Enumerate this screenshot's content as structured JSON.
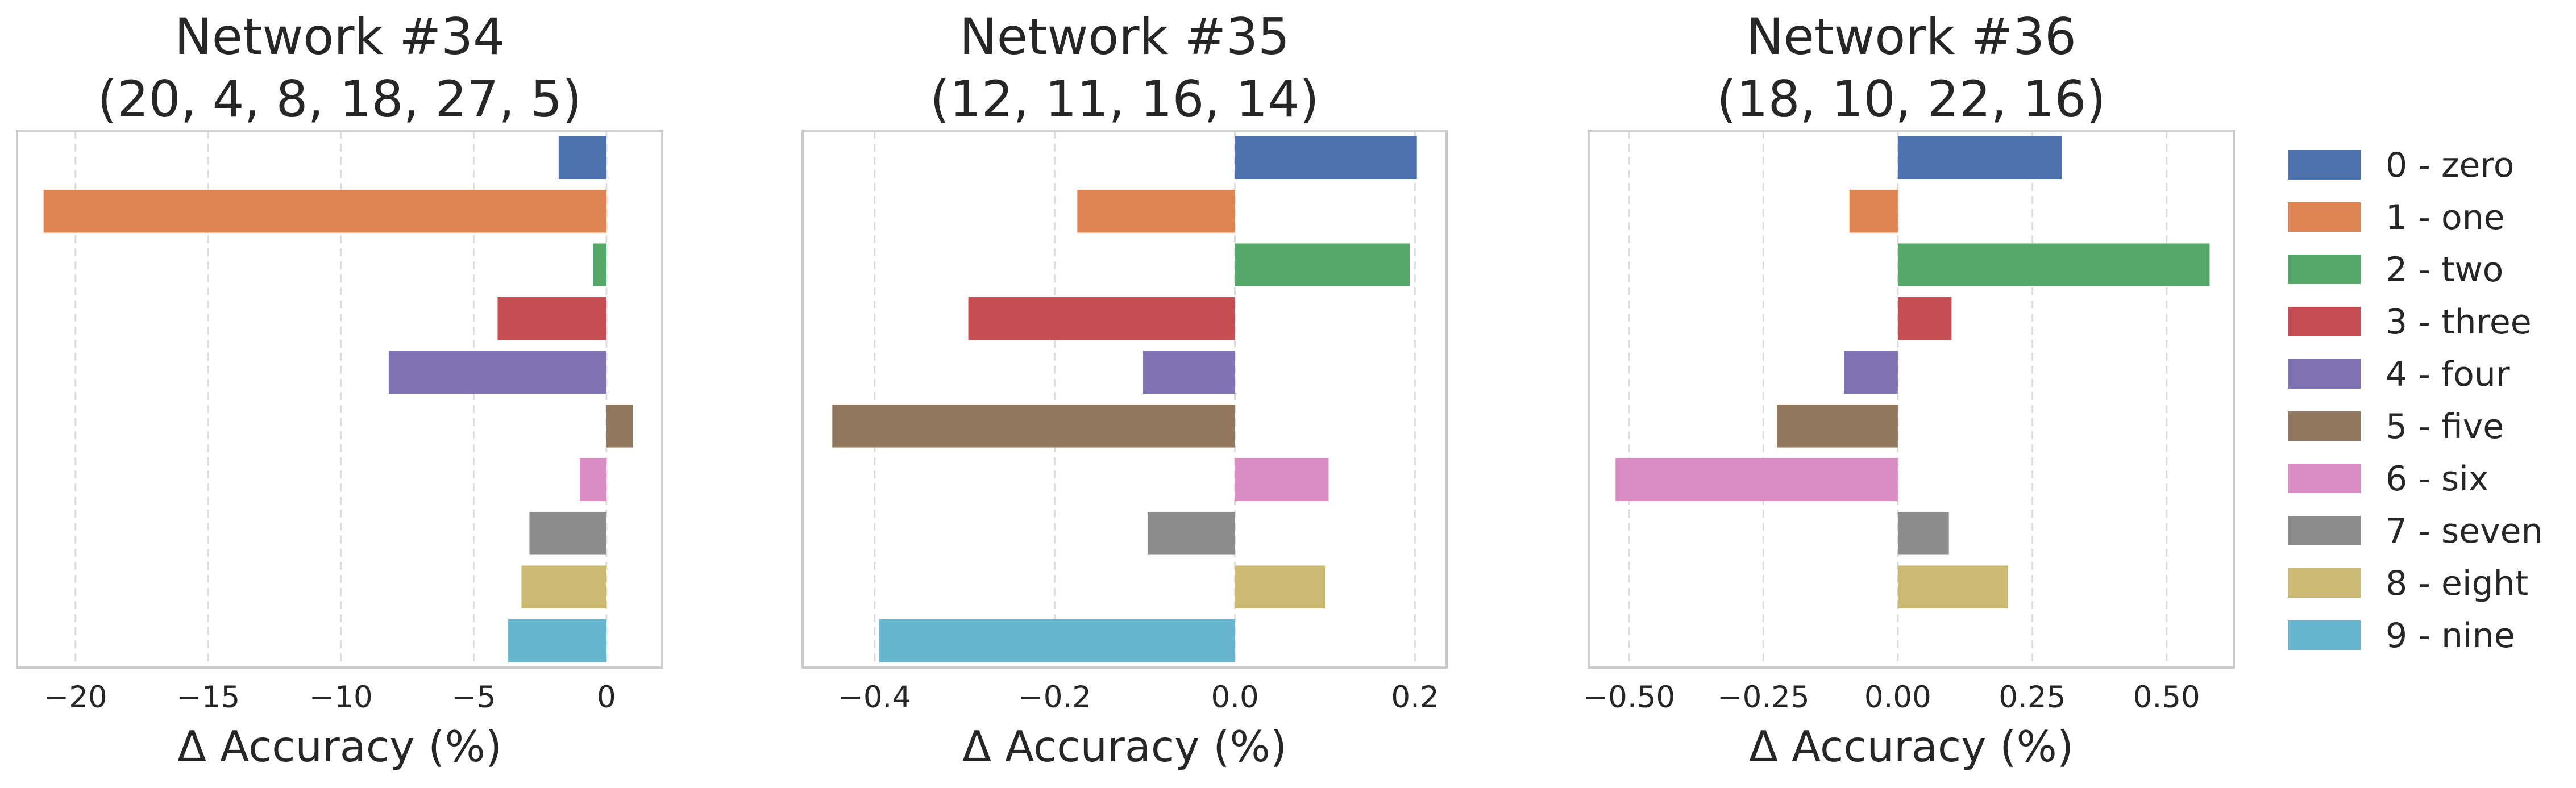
{
  "chart_data": [
    {
      "type": "bar",
      "orientation": "horizontal",
      "title": "Network #34\n(20, 4, 8, 18, 27, 5)",
      "title_lines": [
        "Network #34",
        "(20, 4, 8, 18, 27, 5)"
      ],
      "xlabel": "Δ Accuracy (%)",
      "ylabel": "",
      "xlim": [
        -22.2,
        2.1
      ],
      "xticks": [
        -20,
        -15,
        -10,
        -5,
        0
      ],
      "xtick_labels": [
        "−20",
        "−15",
        "−10",
        "−5",
        "0"
      ],
      "grid": "x",
      "categories": [
        "0 - zero",
        "1 - one",
        "2 - two",
        "3 - three",
        "4 - four",
        "5 - five",
        "6 - six",
        "7 - seven",
        "8 - eight",
        "9 - nine"
      ],
      "values": [
        -1.8,
        -21.2,
        -0.5,
        -4.1,
        -8.2,
        1.0,
        -1.0,
        -2.9,
        -3.2,
        -3.7
      ]
    },
    {
      "type": "bar",
      "orientation": "horizontal",
      "title": "Network #35\n(12, 11, 16, 14)",
      "title_lines": [
        "Network #35",
        "(12, 11, 16, 14)"
      ],
      "xlabel": "Δ Accuracy (%)",
      "ylabel": "",
      "xlim": [
        -0.48,
        0.235
      ],
      "xticks": [
        -0.4,
        -0.2,
        0.0,
        0.2
      ],
      "xtick_labels": [
        "−0.4",
        "−0.2",
        "0.0",
        "0.2"
      ],
      "grid": "x",
      "categories": [
        "0 - zero",
        "1 - one",
        "2 - two",
        "3 - three",
        "4 - four",
        "5 - five",
        "6 - six",
        "7 - seven",
        "8 - eight",
        "9 - nine"
      ],
      "values": [
        0.202,
        -0.175,
        0.194,
        -0.296,
        -0.102,
        -0.447,
        0.104,
        -0.097,
        0.1,
        -0.395
      ]
    },
    {
      "type": "bar",
      "orientation": "horizontal",
      "title": "Network #36\n(18, 10, 22, 16)",
      "title_lines": [
        "Network #36",
        "(18, 10, 22, 16)"
      ],
      "xlabel": "Δ Accuracy (%)",
      "ylabel": "",
      "xlim": [
        -0.575,
        0.625
      ],
      "xticks": [
        -0.5,
        -0.25,
        0.0,
        0.25,
        0.5
      ],
      "xtick_labels": [
        "−0.50",
        "−0.25",
        "0.00",
        "0.25",
        "0.50"
      ],
      "grid": "x",
      "categories": [
        "0 - zero",
        "1 - one",
        "2 - two",
        "3 - three",
        "4 - four",
        "5 - five",
        "6 - six",
        "7 - seven",
        "8 - eight",
        "9 - nine"
      ],
      "values": [
        0.305,
        -0.09,
        0.58,
        0.1,
        -0.1,
        -0.225,
        -0.525,
        0.095,
        0.205,
        0.0
      ]
    }
  ],
  "legend": {
    "placement": "right",
    "entries": [
      "0 - zero",
      "1 - one",
      "2 - two",
      "3 - three",
      "4 - four",
      "5 - five",
      "6 - six",
      "7 - seven",
      "8 - eight",
      "9 - nine"
    ]
  },
  "colors": [
    "#4c72b0",
    "#dd8452",
    "#55a868",
    "#c44e52",
    "#8172b3",
    "#937860",
    "#da8bc3",
    "#8c8c8c",
    "#ccb974",
    "#64b5cd"
  ]
}
